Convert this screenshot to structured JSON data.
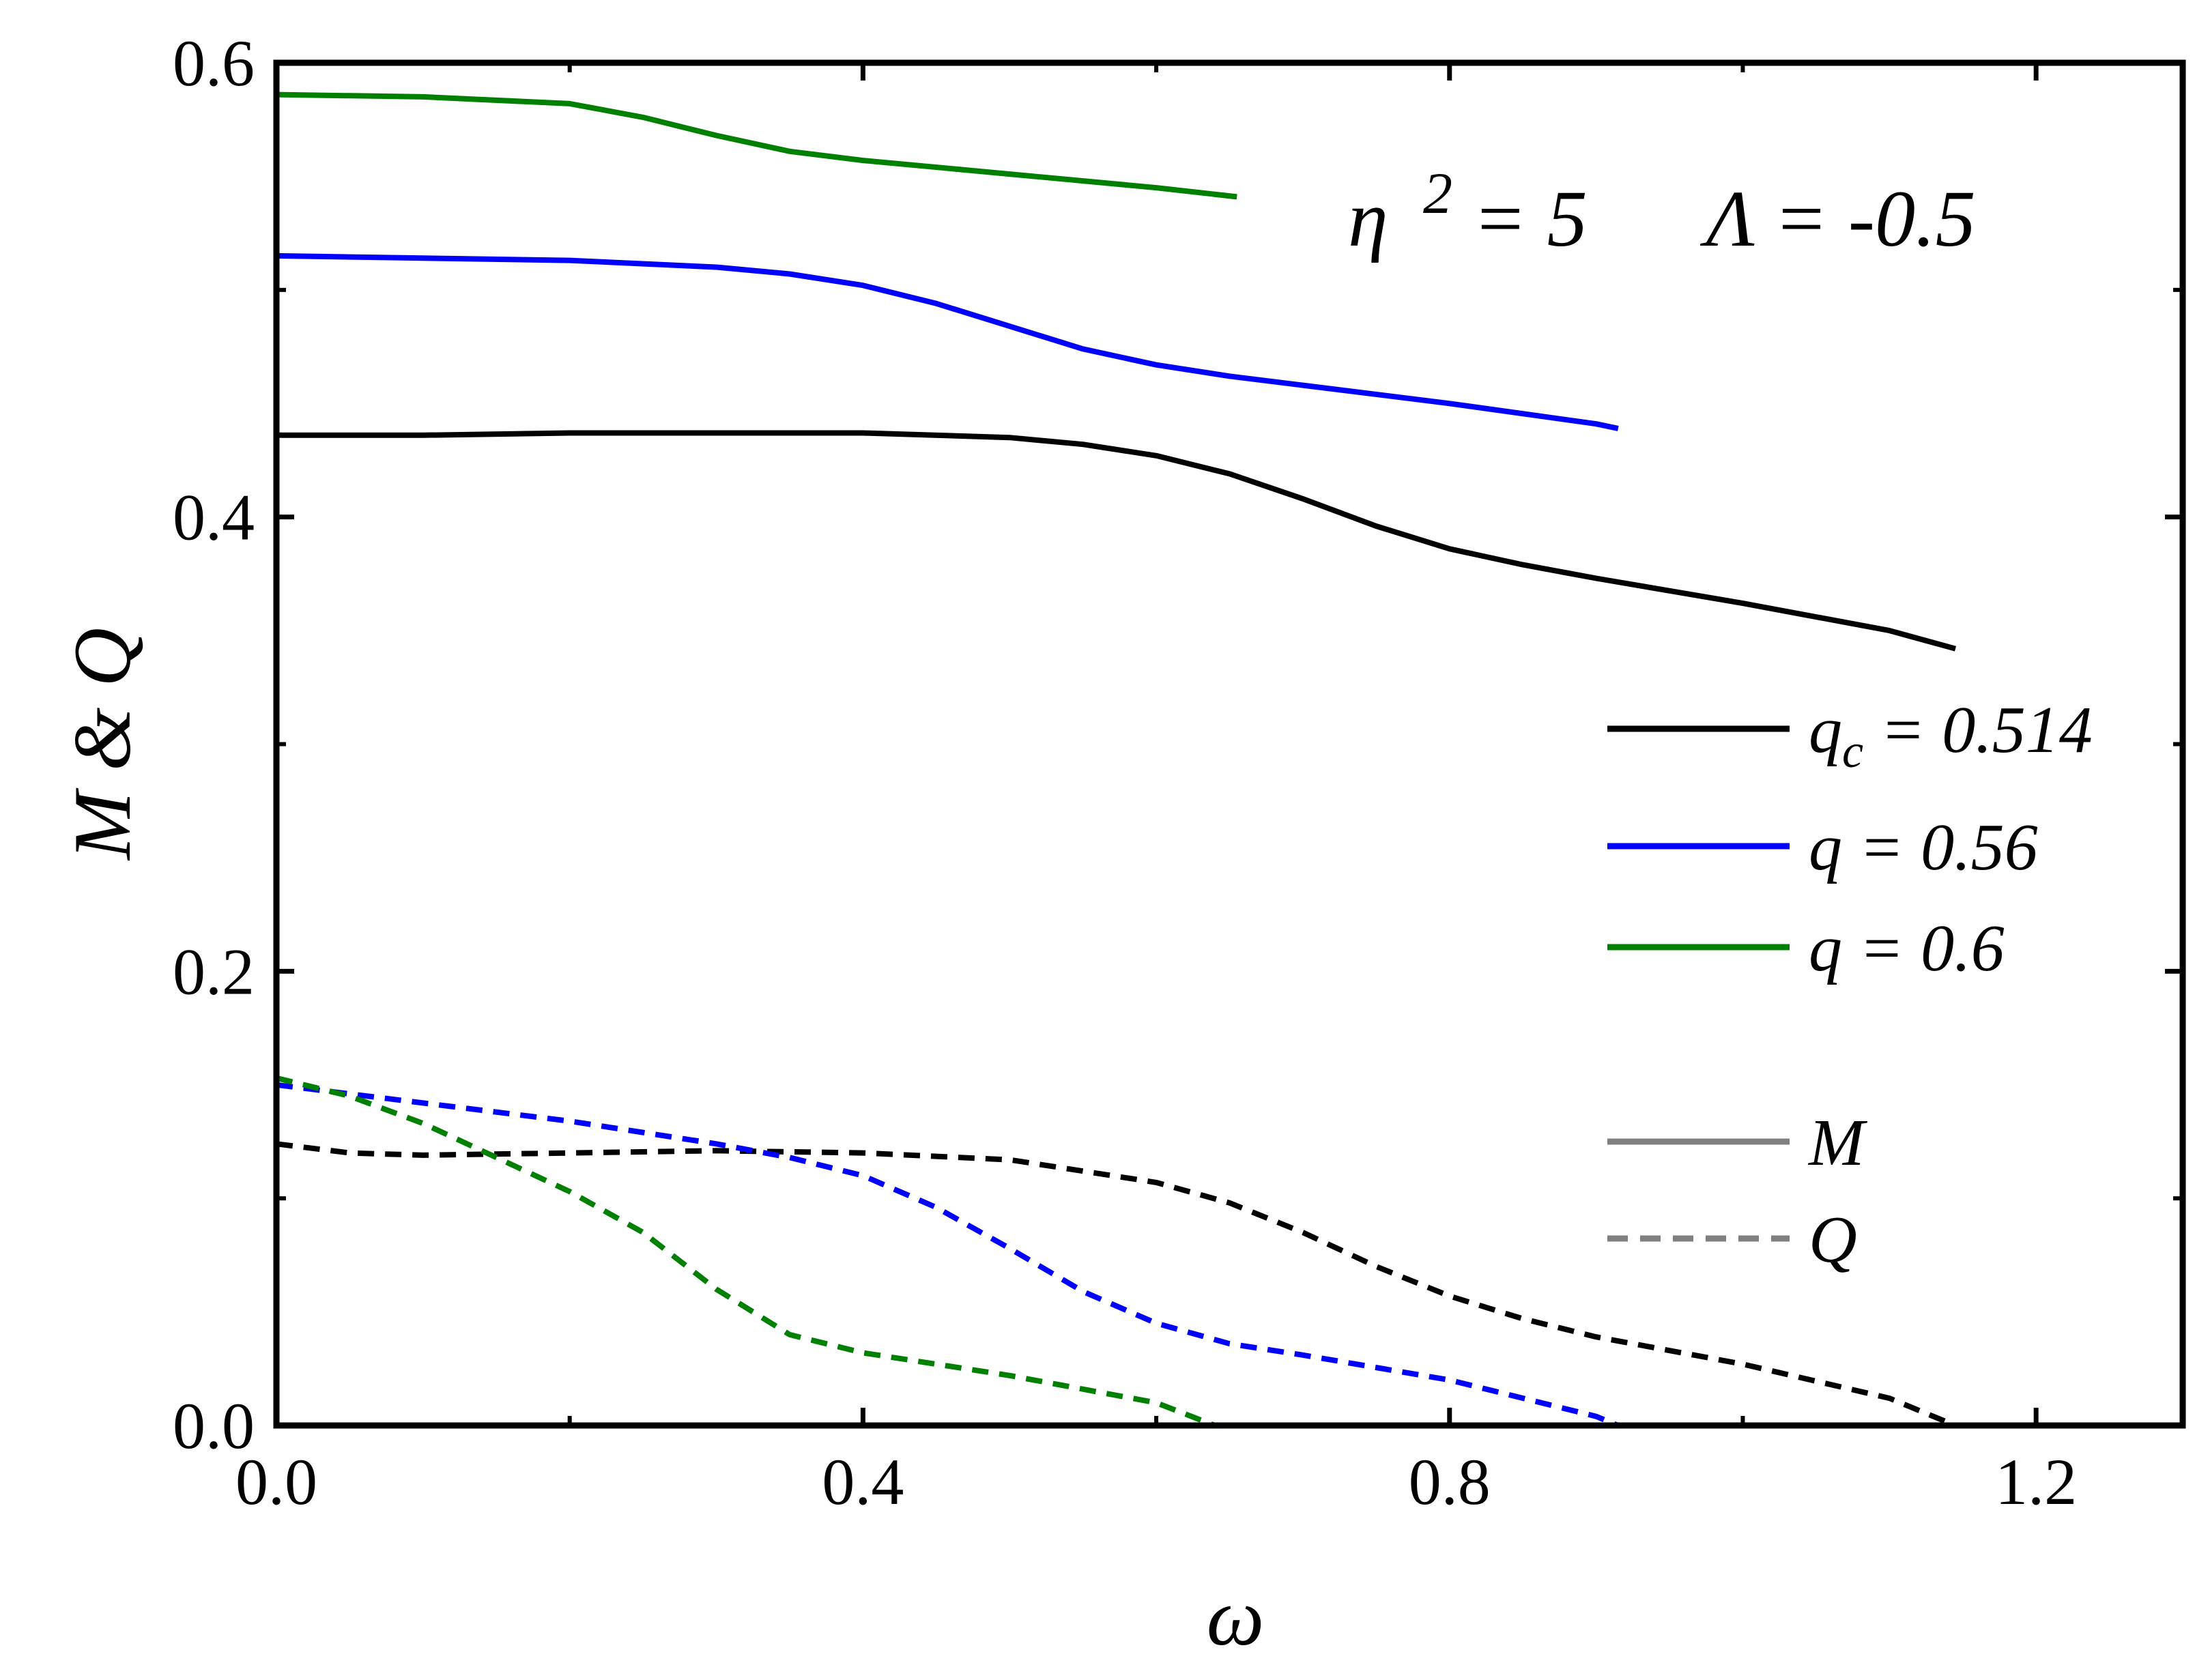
{
  "chart_data": {
    "type": "line",
    "xlabel": "ω",
    "ylabel": "M & Q",
    "xlim": [
      0.0,
      1.3
    ],
    "ylim": [
      0.0,
      0.6
    ],
    "xticks": [
      "0.0",
      "0.4",
      "0.8",
      "1.2"
    ],
    "yticks": [
      "0.0",
      "0.2",
      "0.4",
      "0.6"
    ],
    "xtick_values": [
      0.0,
      0.4,
      0.8,
      1.2
    ],
    "ytick_values": [
      0.0,
      0.2,
      0.4,
      0.6
    ],
    "annotation": {
      "eta_symbol": "η",
      "eta_exp": "2",
      "eta_rhs": " = 5",
      "lambda_text": "Λ = -0.5"
    },
    "legend": {
      "entries": [
        {
          "prefix": "q",
          "sub": "c",
          "suffix": " = 0.514",
          "color": "#000000",
          "dash": false
        },
        {
          "prefix": "q",
          "sub": "",
          "suffix": " = 0.56",
          "color": "#0000ff",
          "dash": false
        },
        {
          "prefix": "q",
          "sub": "",
          "suffix": " = 0.6",
          "color": "#008000",
          "dash": false
        },
        {
          "prefix": "M",
          "sub": "",
          "suffix": "",
          "color": "#808080",
          "dash": false
        },
        {
          "prefix": "Q",
          "sub": "",
          "suffix": "",
          "color": "#808080",
          "dash": true
        }
      ]
    },
    "grid": false,
    "series": [
      {
        "name": "M, q_c = 0.514",
        "color": "#000000",
        "dash": false,
        "x": [
          0.0,
          0.1,
          0.2,
          0.3,
          0.4,
          0.5,
          0.55,
          0.6,
          0.65,
          0.7,
          0.75,
          0.8,
          0.85,
          0.9,
          1.0,
          1.1,
          1.145
        ],
        "y": [
          0.436,
          0.436,
          0.437,
          0.437,
          0.437,
          0.435,
          0.432,
          0.427,
          0.419,
          0.408,
          0.396,
          0.386,
          0.379,
          0.373,
          0.362,
          0.35,
          0.342
        ]
      },
      {
        "name": "M, q = 0.56",
        "color": "#0000ff",
        "dash": false,
        "x": [
          0.0,
          0.1,
          0.2,
          0.3,
          0.35,
          0.4,
          0.45,
          0.5,
          0.55,
          0.6,
          0.65,
          0.7,
          0.8,
          0.9,
          0.915
        ],
        "y": [
          0.515,
          0.514,
          0.513,
          0.51,
          0.507,
          0.502,
          0.494,
          0.484,
          0.474,
          0.467,
          0.462,
          0.458,
          0.45,
          0.441,
          0.439
        ]
      },
      {
        "name": "M, q = 0.6",
        "color": "#008000",
        "dash": false,
        "x": [
          0.0,
          0.1,
          0.2,
          0.25,
          0.3,
          0.35,
          0.4,
          0.5,
          0.6,
          0.655
        ],
        "y": [
          0.586,
          0.585,
          0.582,
          0.576,
          0.568,
          0.561,
          0.557,
          0.551,
          0.545,
          0.541
        ]
      },
      {
        "name": "Q, q_c = 0.514",
        "color": "#000000",
        "dash": true,
        "x": [
          0.0,
          0.05,
          0.1,
          0.2,
          0.3,
          0.4,
          0.5,
          0.6,
          0.65,
          0.7,
          0.75,
          0.8,
          0.85,
          0.9,
          1.0,
          1.1,
          1.145
        ],
        "y": [
          0.124,
          0.12,
          0.119,
          0.12,
          0.121,
          0.12,
          0.117,
          0.107,
          0.098,
          0.085,
          0.07,
          0.057,
          0.047,
          0.039,
          0.027,
          0.012,
          0.0
        ]
      },
      {
        "name": "Q, q = 0.56",
        "color": "#0000ff",
        "dash": true,
        "x": [
          0.0,
          0.1,
          0.2,
          0.3,
          0.35,
          0.4,
          0.45,
          0.5,
          0.55,
          0.6,
          0.65,
          0.7,
          0.8,
          0.9,
          0.915
        ],
        "y": [
          0.15,
          0.142,
          0.134,
          0.124,
          0.118,
          0.11,
          0.096,
          0.078,
          0.059,
          0.045,
          0.036,
          0.031,
          0.02,
          0.004,
          0.0
        ]
      },
      {
        "name": "Q, q = 0.6",
        "color": "#008000",
        "dash": true,
        "x": [
          0.0,
          0.05,
          0.1,
          0.15,
          0.2,
          0.25,
          0.3,
          0.35,
          0.4,
          0.5,
          0.6,
          0.64
        ],
        "y": [
          0.153,
          0.145,
          0.133,
          0.118,
          0.103,
          0.085,
          0.06,
          0.04,
          0.032,
          0.022,
          0.01,
          0.0
        ]
      }
    ]
  }
}
